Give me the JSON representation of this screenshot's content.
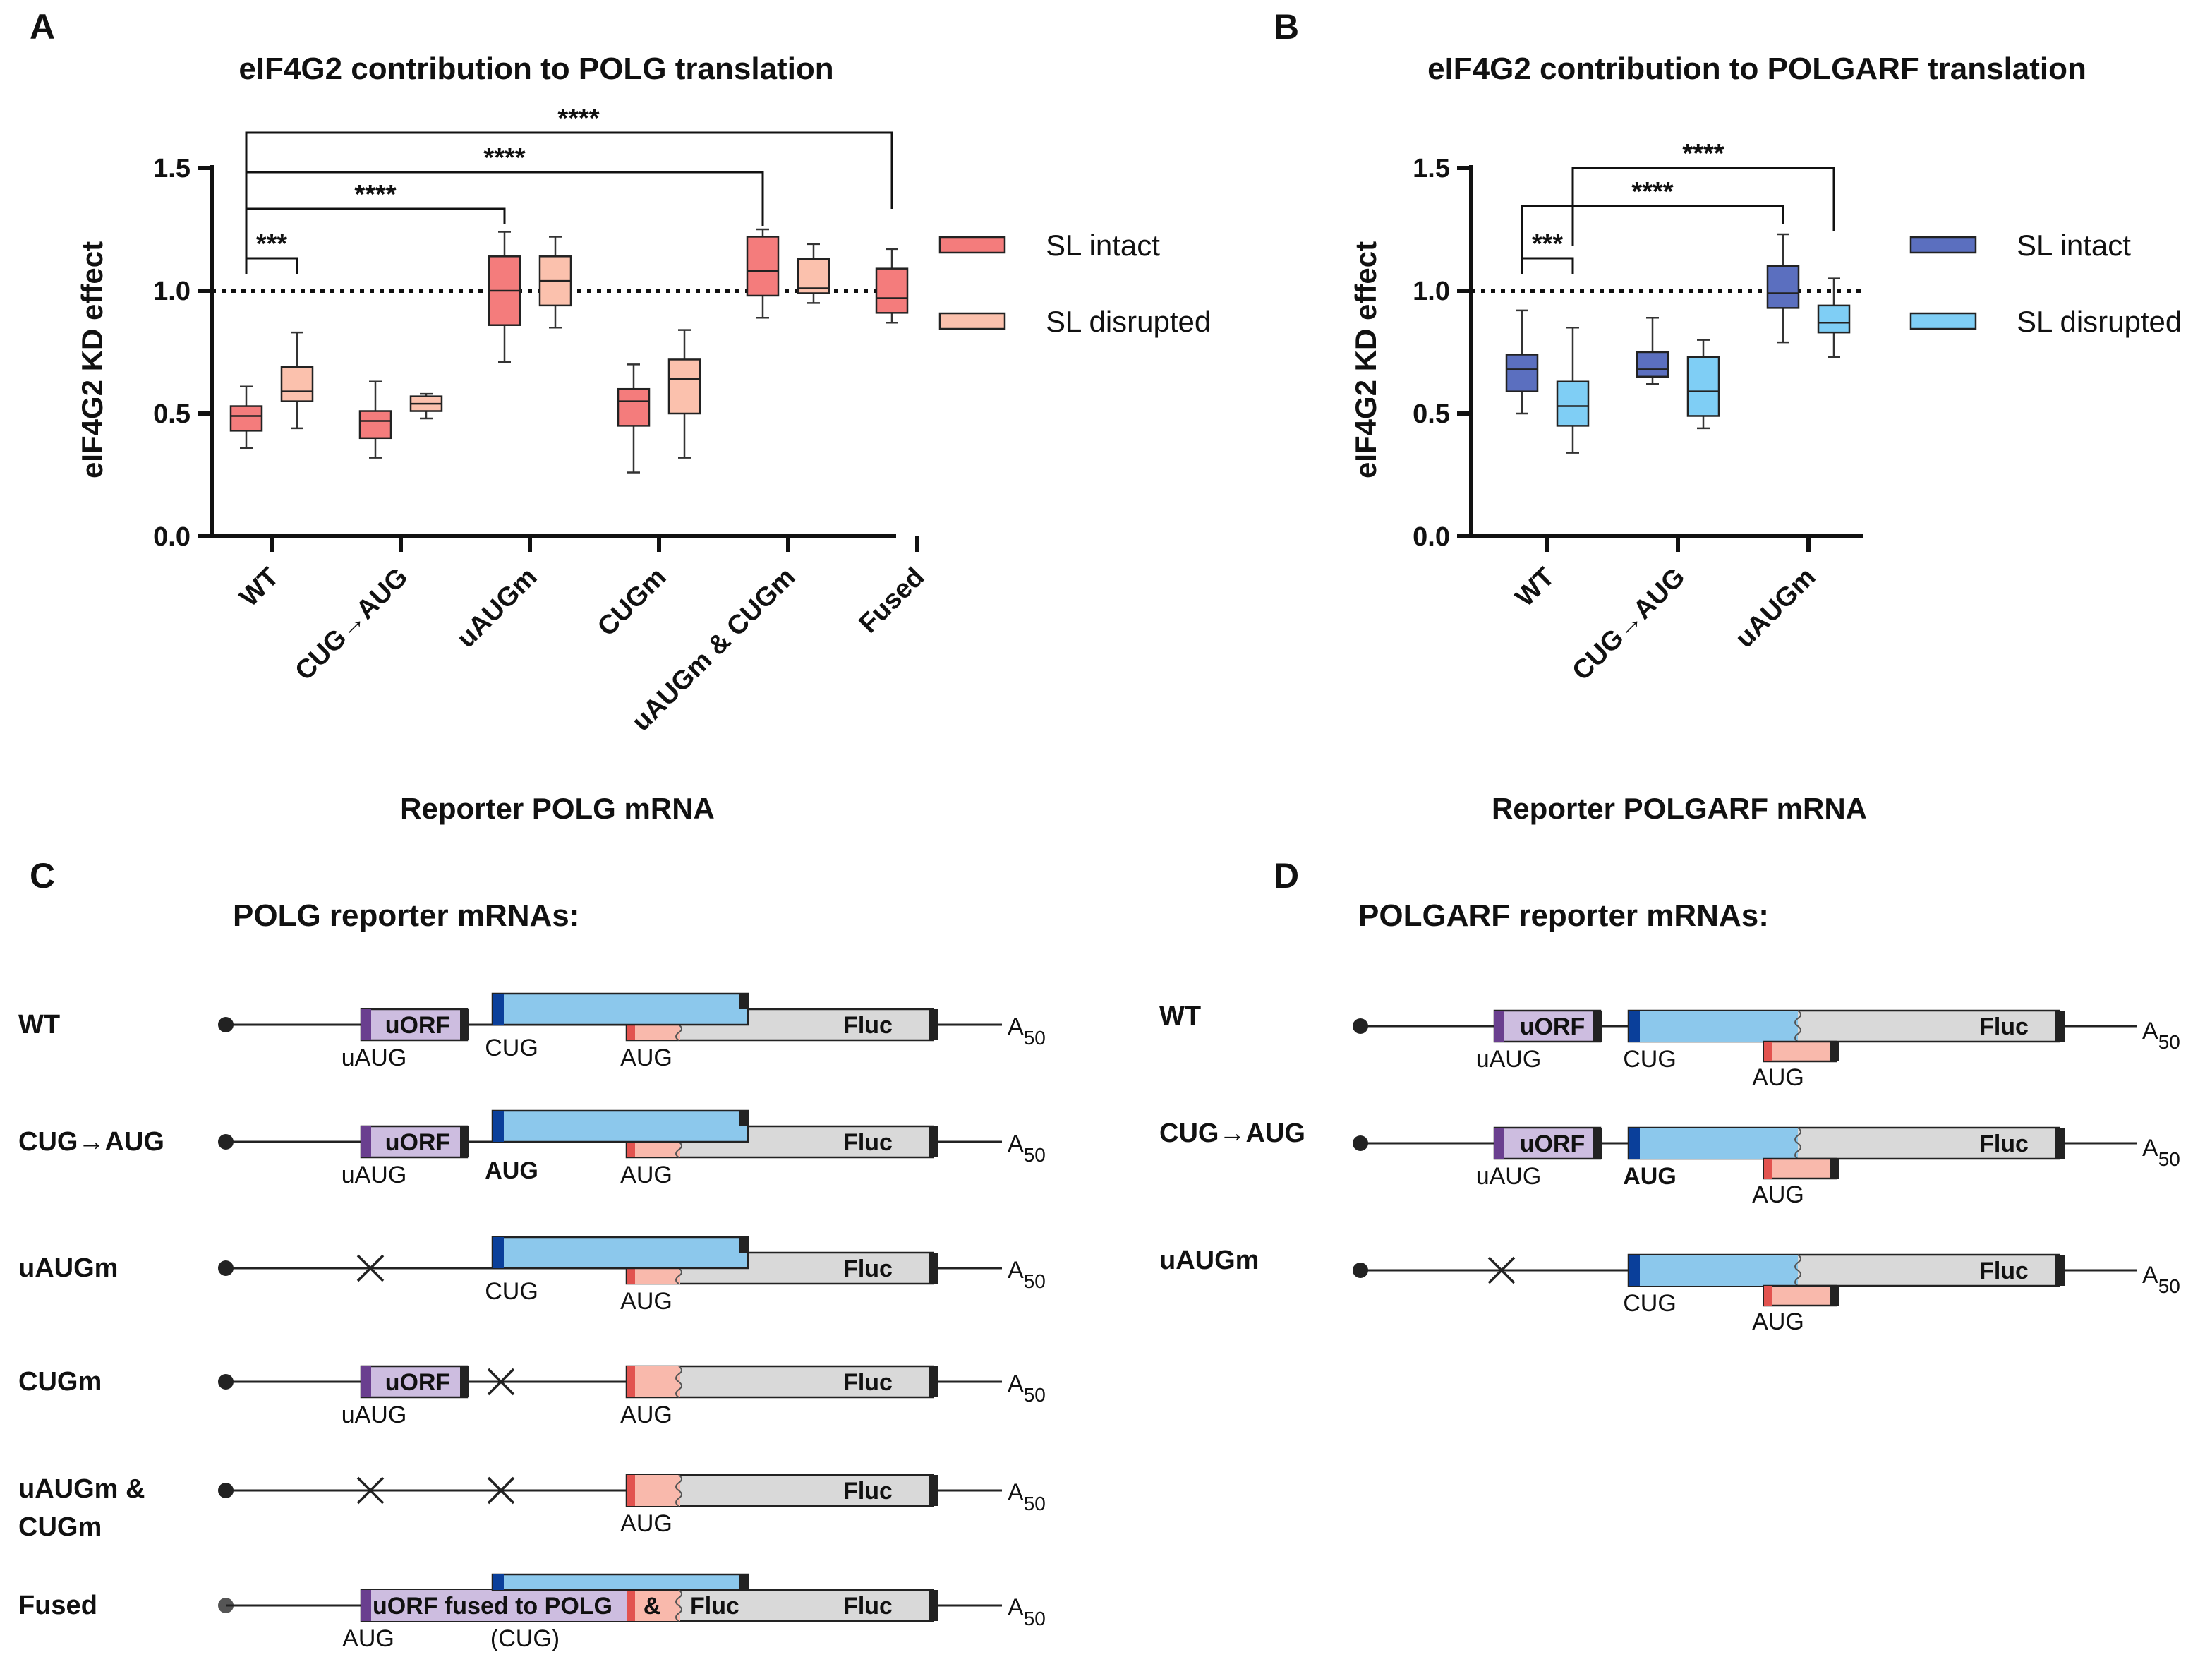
{
  "panels": {
    "A": "A",
    "B": "B",
    "C": "C",
    "D": "D"
  },
  "chart_data": [
    {
      "type": "box",
      "panel": "A",
      "title": "eIF4G2 contribution to POLG translation",
      "xlabel": "Reporter POLG mRNA",
      "ylabel": "eIF4G2 KD effect",
      "ylim": [
        0,
        1.5
      ],
      "yticks": [
        "0.0",
        "0.5",
        "1.0",
        "1.5"
      ],
      "yticks_values": [
        0,
        0.5,
        1.0,
        1.5
      ],
      "reference_line": 1.0,
      "categories": [
        "WT",
        "CUG→AUG",
        "uAUGm",
        "CUGm",
        "uAUGm & CUGm",
        "Fused"
      ],
      "legend": [
        "SL intact",
        "SL disrupted"
      ],
      "colors": {
        "intact": "#f47c7c",
        "disrupted": "#fbc1ad"
      },
      "series": [
        {
          "name": "SL intact",
          "boxes": [
            {
              "min": 0.36,
              "q1": 0.43,
              "median": 0.49,
              "q3": 0.53,
              "max": 0.61
            },
            {
              "min": 0.32,
              "q1": 0.4,
              "median": 0.47,
              "q3": 0.51,
              "max": 0.63
            },
            {
              "min": 0.71,
              "q1": 0.86,
              "median": 1.0,
              "q3": 1.14,
              "max": 1.24
            },
            {
              "min": 0.26,
              "q1": 0.45,
              "median": 0.55,
              "q3": 0.6,
              "max": 0.7
            },
            {
              "min": 0.89,
              "q1": 0.98,
              "median": 1.08,
              "q3": 1.22,
              "max": 1.25
            },
            {
              "min": 0.87,
              "q1": 0.91,
              "median": 0.97,
              "q3": 1.09,
              "max": 1.17
            }
          ]
        },
        {
          "name": "SL disrupted",
          "boxes": [
            {
              "min": 0.44,
              "q1": 0.55,
              "median": 0.59,
              "q3": 0.69,
              "max": 0.83
            },
            {
              "min": 0.48,
              "q1": 0.51,
              "median": 0.54,
              "q3": 0.57,
              "max": 0.58
            },
            {
              "min": 0.85,
              "q1": 0.94,
              "median": 1.04,
              "q3": 1.14,
              "max": 1.22
            },
            {
              "min": 0.32,
              "q1": 0.5,
              "median": 0.64,
              "q3": 0.72,
              "max": 0.84
            },
            {
              "min": 0.95,
              "q1": 0.99,
              "median": 1.01,
              "q3": 1.13,
              "max": 1.19
            },
            null
          ]
        }
      ],
      "significance": [
        {
          "from": "WT SL intact",
          "to": "WT SL disrupted",
          "label": "***"
        },
        {
          "from": "WT SL intact",
          "to": "uAUGm SL intact",
          "label": "****"
        },
        {
          "from": "WT SL intact",
          "to": "uAUGm & CUGm SL intact",
          "label": "****"
        },
        {
          "from": "WT SL intact",
          "to": "Fused SL intact",
          "label": "****"
        }
      ]
    },
    {
      "type": "box",
      "panel": "B",
      "title": "eIF4G2 contribution to POLGARF translation",
      "xlabel": "Reporter POLGARF mRNA",
      "ylabel": "eIF4G2 KD effect",
      "ylim": [
        0,
        1.5
      ],
      "yticks": [
        "0.0",
        "0.5",
        "1.0",
        "1.5"
      ],
      "yticks_values": [
        0,
        0.5,
        1.0,
        1.5
      ],
      "reference_line": 1.0,
      "categories": [
        "WT",
        "CUG→AUG",
        "uAUGm"
      ],
      "legend": [
        "SL intact",
        "SL disrupted"
      ],
      "colors": {
        "intact": "#5b6fbf",
        "disrupted": "#7fcef5"
      },
      "series": [
        {
          "name": "SL intact",
          "boxes": [
            {
              "min": 0.5,
              "q1": 0.59,
              "median": 0.68,
              "q3": 0.74,
              "max": 0.92
            },
            {
              "min": 0.62,
              "q1": 0.65,
              "median": 0.68,
              "q3": 0.75,
              "max": 0.89
            },
            {
              "min": 0.79,
              "q1": 0.93,
              "median": 0.99,
              "q3": 1.1,
              "max": 1.23
            }
          ]
        },
        {
          "name": "SL disrupted",
          "boxes": [
            {
              "min": 0.34,
              "q1": 0.45,
              "median": 0.53,
              "q3": 0.63,
              "max": 0.85
            },
            {
              "min": 0.44,
              "q1": 0.49,
              "median": 0.59,
              "q3": 0.73,
              "max": 0.8
            },
            {
              "min": 0.73,
              "q1": 0.83,
              "median": 0.87,
              "q3": 0.94,
              "max": 1.05
            }
          ]
        }
      ],
      "significance": [
        {
          "from": "WT SL intact",
          "to": "WT SL disrupted",
          "label": "***"
        },
        {
          "from": "WT SL intact",
          "to": "uAUGm SL intact",
          "label": "****"
        },
        {
          "from": "WT SL disrupted",
          "to": "uAUGm SL disrupted",
          "label": "****"
        }
      ]
    }
  ],
  "diagram_c": {
    "title": "POLG reporter mRNAs:",
    "rows": [
      {
        "label": "WT",
        "label2": ""
      },
      {
        "label": "CUG→AUG",
        "label2": ""
      },
      {
        "label": "uAUGm",
        "label2": ""
      },
      {
        "label": "CUGm",
        "label2": ""
      },
      {
        "label": "uAUGm &",
        "label2": "CUGm"
      },
      {
        "label": "Fused",
        "label2": ""
      }
    ],
    "uorf": "uORF",
    "fluc": "Fluc",
    "uaug": "uAUG",
    "cug": "CUG",
    "aug": "AUG",
    "aug_bold": "AUG",
    "poly_a": "A",
    "poly_a_sub": "50",
    "fused_box": "uORF fused to POLG",
    "fused_amp": "&",
    "fused_fluc": "Fluc",
    "fused_aug": "AUG",
    "fused_cug": "(CUG)"
  },
  "diagram_d": {
    "title": "POLGARF reporter mRNAs:",
    "rows": [
      {
        "label": "WT"
      },
      {
        "label": "CUG→AUG"
      },
      {
        "label": "uAUGm"
      }
    ]
  }
}
